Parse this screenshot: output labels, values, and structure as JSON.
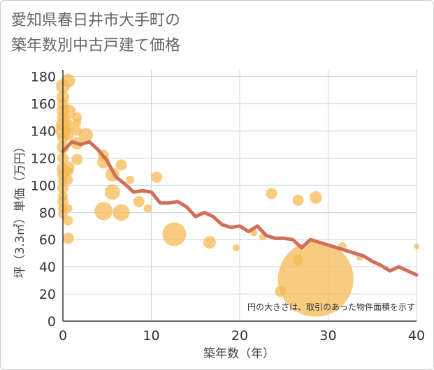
{
  "title_line1": "愛知県春日井市大手町の",
  "title_line2": "築年数別中古戸建て価格",
  "chart_data": {
    "type": "scatter",
    "xlabel": "築年数（年）",
    "ylabel": "坪（3.3㎡）単価（万円）",
    "xlim": [
      0,
      40
    ],
    "ylim": [
      0,
      185
    ],
    "xticks": [
      0,
      10,
      20,
      30,
      40
    ],
    "yticks": [
      0,
      20,
      40,
      60,
      80,
      100,
      120,
      140,
      160,
      180
    ],
    "annotation": "円の大きさは、取引のあった物件面積を示す",
    "colors": {
      "bubble": "#f5b84f",
      "line": "#d0705a",
      "grid": "#c8d6e0",
      "axis": "#333333"
    },
    "bubbles": [
      {
        "x": 0,
        "y": 173,
        "s": 10
      },
      {
        "x": 0,
        "y": 165,
        "s": 9
      },
      {
        "x": 0,
        "y": 160,
        "s": 8
      },
      {
        "x": 0,
        "y": 155,
        "s": 9
      },
      {
        "x": 0,
        "y": 150,
        "s": 8
      },
      {
        "x": 0,
        "y": 145,
        "s": 10
      },
      {
        "x": 0,
        "y": 140,
        "s": 11
      },
      {
        "x": 0,
        "y": 135,
        "s": 8
      },
      {
        "x": 0,
        "y": 128,
        "s": 9
      },
      {
        "x": 0,
        "y": 120,
        "s": 8
      },
      {
        "x": 0,
        "y": 112,
        "s": 9
      },
      {
        "x": 0,
        "y": 108,
        "s": 8
      },
      {
        "x": 0,
        "y": 103,
        "s": 7
      },
      {
        "x": 0,
        "y": 98,
        "s": 8
      },
      {
        "x": 0,
        "y": 92,
        "s": 7
      },
      {
        "x": 0,
        "y": 88,
        "s": 8
      },
      {
        "x": 0,
        "y": 83,
        "s": 7
      },
      {
        "x": 0,
        "y": 79,
        "s": 7
      },
      {
        "x": 0.6,
        "y": 177,
        "s": 10
      },
      {
        "x": 0.6,
        "y": 154,
        "s": 11
      },
      {
        "x": 0.6,
        "y": 144,
        "s": 9
      },
      {
        "x": 0.6,
        "y": 137,
        "s": 8
      },
      {
        "x": 0.6,
        "y": 113,
        "s": 9
      },
      {
        "x": 0.6,
        "y": 110,
        "s": 7
      },
      {
        "x": 0.6,
        "y": 104,
        "s": 7
      },
      {
        "x": 0.6,
        "y": 83,
        "s": 6
      },
      {
        "x": 0.6,
        "y": 74,
        "s": 7
      },
      {
        "x": 0.6,
        "y": 61,
        "s": 8
      },
      {
        "x": 1.6,
        "y": 150,
        "s": 7
      },
      {
        "x": 1.6,
        "y": 146,
        "s": 6
      },
      {
        "x": 1.6,
        "y": 140,
        "s": 7
      },
      {
        "x": 1.6,
        "y": 131,
        "s": 9
      },
      {
        "x": 1.6,
        "y": 119,
        "s": 8
      },
      {
        "x": 2.6,
        "y": 137,
        "s": 10
      },
      {
        "x": 4.6,
        "y": 122,
        "s": 8
      },
      {
        "x": 4.6,
        "y": 117,
        "s": 9
      },
      {
        "x": 5.6,
        "y": 108,
        "s": 10
      },
      {
        "x": 5.6,
        "y": 95,
        "s": 11
      },
      {
        "x": 4.6,
        "y": 81,
        "s": 13
      },
      {
        "x": 6.6,
        "y": 115,
        "s": 8
      },
      {
        "x": 6.6,
        "y": 80,
        "s": 12
      },
      {
        "x": 7.6,
        "y": 104,
        "s": 6
      },
      {
        "x": 8.6,
        "y": 88,
        "s": 8
      },
      {
        "x": 9.6,
        "y": 83,
        "s": 6
      },
      {
        "x": 10.6,
        "y": 106,
        "s": 8
      },
      {
        "x": 12.6,
        "y": 64,
        "s": 17
      },
      {
        "x": 16.6,
        "y": 58,
        "s": 9
      },
      {
        "x": 19.6,
        "y": 54,
        "s": 5
      },
      {
        "x": 21.6,
        "y": 65,
        "s": 5
      },
      {
        "x": 22.6,
        "y": 62,
        "s": 5
      },
      {
        "x": 23.6,
        "y": 94,
        "s": 8
      },
      {
        "x": 24.6,
        "y": 22,
        "s": 8
      },
      {
        "x": 26.6,
        "y": 89,
        "s": 8
      },
      {
        "x": 26.6,
        "y": 45,
        "s": 8
      },
      {
        "x": 28.6,
        "y": 91,
        "s": 9
      },
      {
        "x": 28.6,
        "y": 31,
        "s": 54
      },
      {
        "x": 31.6,
        "y": 55,
        "s": 6
      },
      {
        "x": 33.6,
        "y": 47,
        "s": 5
      },
      {
        "x": 40,
        "y": 55,
        "s": 4
      }
    ],
    "trend_line": {
      "x": [
        0,
        1,
        2,
        3,
        4,
        5,
        6,
        7,
        8,
        9,
        10,
        11,
        12,
        13,
        14,
        15,
        16,
        17,
        18,
        19,
        20,
        21,
        22,
        23,
        24,
        25,
        26,
        27,
        28,
        29,
        30,
        31,
        32,
        33,
        34,
        35,
        36,
        37,
        38,
        39,
        40
      ],
      "y": [
        125,
        132,
        130,
        132,
        126,
        118,
        106,
        101,
        95,
        96,
        95,
        87,
        87,
        88,
        84,
        77,
        80,
        77,
        71,
        69,
        70,
        66,
        70,
        63,
        61,
        61,
        60,
        54,
        60,
        58,
        56,
        54,
        52,
        50,
        48,
        44,
        41,
        37,
        40,
        37,
        34
      ]
    }
  }
}
